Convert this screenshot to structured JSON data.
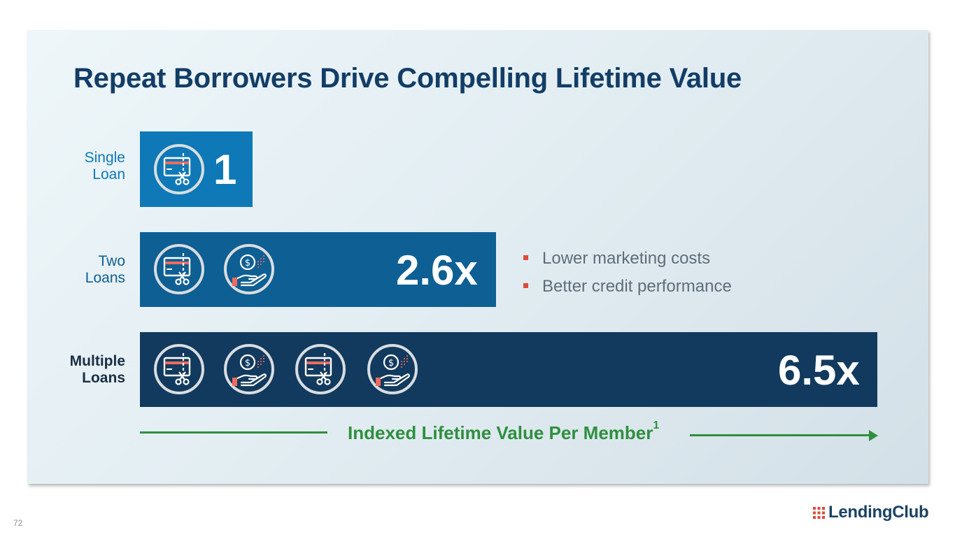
{
  "title": "Repeat Borrowers Drive Compelling Lifetime Value",
  "chart_data": {
    "type": "bar",
    "orientation": "horizontal",
    "categories": [
      "Single Loan",
      "Two Loans",
      "Multiple Loans"
    ],
    "values": [
      1,
      2.6,
      6.5
    ],
    "value_labels": [
      "1",
      "2.6x",
      "6.5x"
    ],
    "xlabel": "Indexed Lifetime Value Per Member",
    "xlabel_superscript": "1",
    "icons_per_bar": [
      [
        "credit-card-scissors-icon"
      ],
      [
        "credit-card-scissors-icon",
        "hand-dollar-icon"
      ],
      [
        "credit-card-scissors-icon",
        "hand-dollar-icon",
        "credit-card-scissors-icon",
        "hand-dollar-icon"
      ]
    ],
    "bar_colors": [
      "#0e79b6",
      "#0e5f93",
      "#123a5e"
    ]
  },
  "rows": [
    {
      "label_line1": "Single",
      "label_line2": "Loan",
      "value": "1"
    },
    {
      "label_line1": "Two",
      "label_line2": "Loans",
      "value": "2.6x"
    },
    {
      "label_line1": "Multiple",
      "label_line2": "Loans",
      "value": "6.5x"
    }
  ],
  "bullets": [
    "Lower marketing costs",
    "Better credit performance"
  ],
  "footer": {
    "page_number": "72",
    "logo_text": "LendingClub"
  },
  "colors": {
    "title": "#123d66",
    "axis": "#2f8f3e",
    "bullet_marker": "#e04a3a",
    "label_single": "#0e79b6",
    "label_two": "#0e5f93",
    "label_multiple": "#1a2f44"
  }
}
